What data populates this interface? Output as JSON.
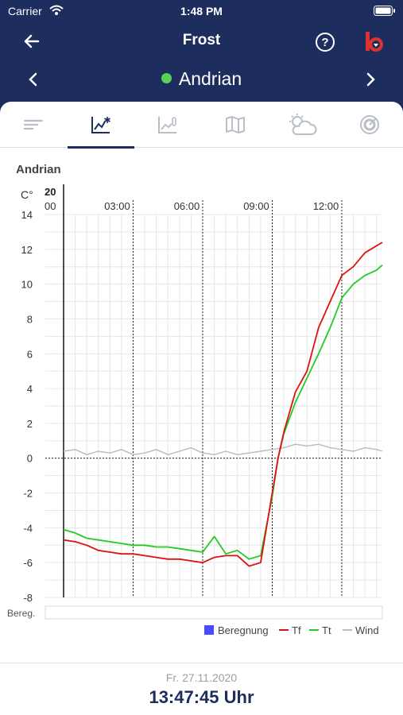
{
  "status_bar": {
    "carrier": "Carrier",
    "time": "1:48 PM"
  },
  "header": {
    "title": "Frost",
    "site_name": "Andrian",
    "site_status_color": "#5ad05a"
  },
  "tabs": [
    {
      "icon": "list-lines-icon",
      "active": false
    },
    {
      "icon": "chart-frost-icon",
      "active": true
    },
    {
      "icon": "chart-sensor-icon",
      "active": false
    },
    {
      "icon": "map-icon",
      "active": false
    },
    {
      "icon": "weather-icon",
      "active": false
    },
    {
      "icon": "sensor-dial-icon",
      "active": false
    }
  ],
  "chart_title": "Andrian",
  "chart_data": {
    "type": "line",
    "ylabel": "C°",
    "ylim": [
      -8,
      14
    ],
    "yticks": [
      "14",
      "12",
      "10",
      "8",
      "6",
      "4",
      "2",
      "0",
      "-2",
      "-4",
      "-6",
      "-8"
    ],
    "date_label": "20",
    "xticks": [
      "00",
      "03:00",
      "06:00",
      "09:00",
      "12:00"
    ],
    "x_hours_range": [
      0,
      13.75
    ],
    "grid": true,
    "legend_position": "bottom-right",
    "rain_row_label": "Bereg.",
    "colors": {
      "Tf": "#dd1111",
      "Tt": "#22cc22",
      "Wind": "#bbbbbb",
      "Beregnung": "#4a4aff"
    },
    "series": [
      {
        "name": "Tf",
        "x": [
          0,
          0.5,
          1,
          1.5,
          2,
          2.5,
          3,
          3.5,
          4,
          4.5,
          5,
          5.5,
          6,
          6.5,
          7,
          7.5,
          8,
          8.5,
          9,
          9.25,
          9.5,
          10,
          10.5,
          11,
          11.5,
          12,
          12.5,
          13,
          13.5,
          13.75
        ],
        "values": [
          -4.7,
          -4.8,
          -5.0,
          -5.3,
          -5.4,
          -5.5,
          -5.5,
          -5.6,
          -5.7,
          -5.8,
          -5.8,
          -5.9,
          -6.0,
          -5.7,
          -5.6,
          -5.6,
          -6.2,
          -6.0,
          -2.0,
          0.0,
          1.5,
          3.8,
          5.0,
          7.5,
          9.0,
          10.5,
          11.0,
          11.8,
          12.2,
          12.4
        ]
      },
      {
        "name": "Tt",
        "x": [
          0,
          0.5,
          1,
          1.5,
          2,
          2.5,
          3,
          3.5,
          4,
          4.5,
          5,
          5.5,
          6,
          6.5,
          7,
          7.5,
          8,
          8.5,
          9,
          9.25,
          9.5,
          10,
          10.5,
          11,
          11.5,
          12,
          12.5,
          13,
          13.5,
          13.75
        ],
        "values": [
          -4.1,
          -4.3,
          -4.6,
          -4.7,
          -4.8,
          -4.9,
          -5.0,
          -5.0,
          -5.1,
          -5.1,
          -5.2,
          -5.3,
          -5.4,
          -4.5,
          -5.5,
          -5.3,
          -5.8,
          -5.6,
          -2.2,
          0.0,
          1.4,
          3.2,
          4.6,
          6.0,
          7.5,
          9.2,
          10.0,
          10.5,
          10.8,
          11.1
        ]
      },
      {
        "name": "Wind",
        "x": [
          0,
          0.5,
          1,
          1.5,
          2,
          2.5,
          3,
          3.5,
          4,
          4.5,
          5,
          5.5,
          6,
          6.5,
          7,
          7.5,
          8,
          8.5,
          9,
          9.5,
          10,
          10.5,
          11,
          11.5,
          12,
          12.5,
          13,
          13.5,
          13.75
        ],
        "values": [
          0.4,
          0.5,
          0.2,
          0.4,
          0.3,
          0.5,
          0.2,
          0.3,
          0.5,
          0.2,
          0.4,
          0.6,
          0.3,
          0.2,
          0.4,
          0.2,
          0.3,
          0.4,
          0.5,
          0.6,
          0.8,
          0.7,
          0.8,
          0.6,
          0.5,
          0.4,
          0.6,
          0.5,
          0.4
        ]
      }
    ],
    "legend": [
      "Beregnung",
      "Tf",
      "Tt",
      "Wind"
    ]
  },
  "footer": {
    "date": "Fr. 27.11.2020",
    "time": "13:47:45 Uhr"
  }
}
